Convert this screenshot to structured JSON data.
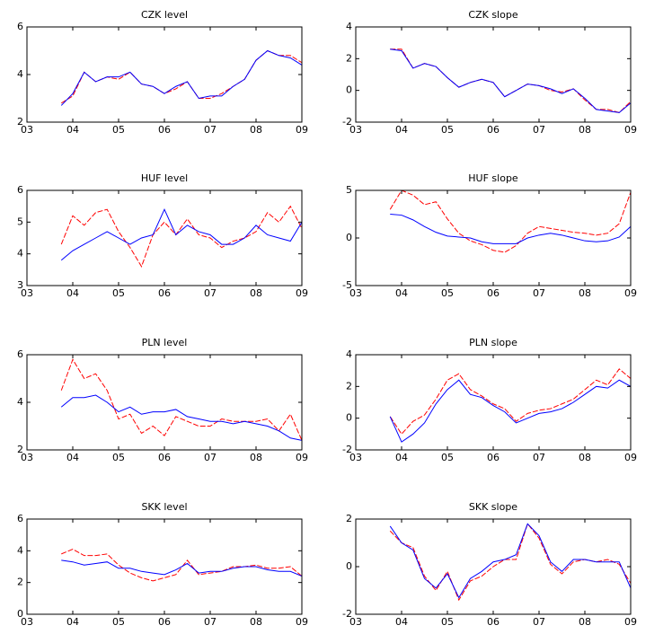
{
  "chart_data": [
    {
      "type": "line",
      "title": "CZK level",
      "x": [
        3.75,
        4.0,
        4.25,
        4.5,
        4.75,
        5.0,
        5.25,
        5.5,
        5.75,
        6.0,
        6.25,
        6.5,
        6.75,
        7.0,
        7.25,
        7.5,
        7.75,
        8.0,
        8.25,
        8.5,
        8.75,
        9.0
      ],
      "xlim": [
        3,
        9
      ],
      "xticks": [
        {
          "value": 3,
          "label": "03"
        },
        {
          "value": 4,
          "label": "04"
        },
        {
          "value": 5,
          "label": "05"
        },
        {
          "value": 6,
          "label": "06"
        },
        {
          "value": 7,
          "label": "07"
        },
        {
          "value": 8,
          "label": "08"
        },
        {
          "value": 9,
          "label": "09"
        }
      ],
      "ylim": [
        2,
        6
      ],
      "yticks": [
        2,
        4,
        6
      ],
      "series": [
        {
          "color": "#ff0000",
          "values": [
            2.8,
            3.1,
            4.1,
            3.7,
            3.9,
            3.8,
            4.1,
            3.6,
            3.5,
            3.2,
            3.4,
            3.7,
            3.0,
            3.0,
            3.2,
            3.5,
            3.8,
            4.6,
            5.0,
            4.8,
            4.8,
            4.5
          ]
        },
        {
          "color": "#0000ff",
          "values": [
            2.7,
            3.2,
            4.1,
            3.7,
            3.9,
            3.9,
            4.1,
            3.6,
            3.5,
            3.2,
            3.5,
            3.7,
            3.0,
            3.1,
            3.1,
            3.5,
            3.8,
            4.6,
            5.0,
            4.8,
            4.7,
            4.4
          ]
        }
      ]
    },
    {
      "type": "line",
      "title": "CZK slope",
      "x": [
        3.75,
        4.0,
        4.25,
        4.5,
        4.75,
        5.0,
        5.25,
        5.5,
        5.75,
        6.0,
        6.25,
        6.5,
        6.75,
        7.0,
        7.25,
        7.5,
        7.75,
        8.0,
        8.25,
        8.5,
        8.75,
        9.0
      ],
      "xlim": [
        3,
        9
      ],
      "xticks": [
        {
          "value": 3,
          "label": "03"
        },
        {
          "value": 4,
          "label": "04"
        },
        {
          "value": 5,
          "label": "05"
        },
        {
          "value": 6,
          "label": "06"
        },
        {
          "value": 7,
          "label": "07"
        },
        {
          "value": 8,
          "label": "08"
        },
        {
          "value": 9,
          "label": "09"
        }
      ],
      "ylim": [
        -2,
        4
      ],
      "yticks": [
        -2,
        0,
        2,
        4
      ],
      "series": [
        {
          "color": "#ff0000",
          "values": [
            2.6,
            2.6,
            1.4,
            1.7,
            1.5,
            0.8,
            0.2,
            0.5,
            0.7,
            0.5,
            -0.4,
            0.0,
            0.4,
            0.3,
            0.0,
            -0.1,
            0.1,
            -0.6,
            -1.2,
            -1.2,
            -1.4,
            -0.7
          ]
        },
        {
          "color": "#0000ff",
          "values": [
            2.6,
            2.5,
            1.4,
            1.7,
            1.5,
            0.8,
            0.2,
            0.5,
            0.7,
            0.5,
            -0.4,
            0.0,
            0.4,
            0.3,
            0.1,
            -0.2,
            0.1,
            -0.5,
            -1.2,
            -1.3,
            -1.4,
            -0.8
          ]
        }
      ]
    },
    {
      "type": "line",
      "title": "HUF level",
      "x": [
        3.75,
        4.0,
        4.25,
        4.5,
        4.75,
        5.0,
        5.25,
        5.5,
        5.75,
        6.0,
        6.25,
        6.5,
        6.75,
        7.0,
        7.25,
        7.5,
        7.75,
        8.0,
        8.25,
        8.5,
        8.75,
        9.0
      ],
      "xlim": [
        3,
        9
      ],
      "xticks": [
        {
          "value": 3,
          "label": "03"
        },
        {
          "value": 4,
          "label": "04"
        },
        {
          "value": 5,
          "label": "05"
        },
        {
          "value": 6,
          "label": "06"
        },
        {
          "value": 7,
          "label": "07"
        },
        {
          "value": 8,
          "label": "08"
        },
        {
          "value": 9,
          "label": "09"
        }
      ],
      "ylim": [
        3,
        6
      ],
      "yticks": [
        3,
        4,
        5,
        6
      ],
      "series": [
        {
          "color": "#ff0000",
          "values": [
            4.3,
            5.2,
            4.9,
            5.3,
            5.4,
            4.7,
            4.2,
            3.6,
            4.6,
            5.0,
            4.6,
            5.1,
            4.6,
            4.5,
            4.2,
            4.4,
            4.5,
            4.7,
            5.3,
            5.0,
            5.5,
            4.8
          ]
        },
        {
          "color": "#0000ff",
          "values": [
            3.8,
            4.1,
            4.3,
            4.5,
            4.7,
            4.5,
            4.3,
            4.5,
            4.6,
            5.4,
            4.6,
            4.9,
            4.7,
            4.6,
            4.3,
            4.3,
            4.5,
            4.9,
            4.6,
            4.5,
            4.4,
            5.0
          ]
        }
      ]
    },
    {
      "type": "line",
      "title": "HUF slope",
      "x": [
        3.75,
        4.0,
        4.25,
        4.5,
        4.75,
        5.0,
        5.25,
        5.5,
        5.75,
        6.0,
        6.25,
        6.5,
        6.75,
        7.0,
        7.25,
        7.5,
        7.75,
        8.0,
        8.25,
        8.5,
        8.75,
        9.0
      ],
      "xlim": [
        3,
        9
      ],
      "xticks": [
        {
          "value": 3,
          "label": "03"
        },
        {
          "value": 4,
          "label": "04"
        },
        {
          "value": 5,
          "label": "05"
        },
        {
          "value": 6,
          "label": "06"
        },
        {
          "value": 7,
          "label": "07"
        },
        {
          "value": 8,
          "label": "08"
        },
        {
          "value": 9,
          "label": "09"
        }
      ],
      "ylim": [
        -5,
        5
      ],
      "yticks": [
        -5,
        0,
        5
      ],
      "series": [
        {
          "color": "#ff0000",
          "values": [
            3.0,
            5.0,
            4.5,
            3.5,
            3.8,
            2.0,
            0.5,
            -0.3,
            -0.7,
            -1.3,
            -1.5,
            -0.8,
            0.5,
            1.2,
            1.0,
            0.8,
            0.6,
            0.5,
            0.3,
            0.5,
            1.5,
            4.8
          ]
        },
        {
          "color": "#0000ff",
          "values": [
            2.5,
            2.4,
            1.9,
            1.2,
            0.6,
            0.2,
            0.1,
            0.0,
            -0.4,
            -0.6,
            -0.6,
            -0.6,
            0.0,
            0.3,
            0.5,
            0.3,
            0.0,
            -0.3,
            -0.4,
            -0.3,
            0.1,
            1.2
          ]
        }
      ]
    },
    {
      "type": "line",
      "title": "PLN level",
      "x": [
        3.75,
        4.0,
        4.25,
        4.5,
        4.75,
        5.0,
        5.25,
        5.5,
        5.75,
        6.0,
        6.25,
        6.5,
        6.75,
        7.0,
        7.25,
        7.5,
        7.75,
        8.0,
        8.25,
        8.5,
        8.75,
        9.0
      ],
      "xlim": [
        3,
        9
      ],
      "xticks": [
        {
          "value": 3,
          "label": "03"
        },
        {
          "value": 4,
          "label": "04"
        },
        {
          "value": 5,
          "label": "05"
        },
        {
          "value": 6,
          "label": "06"
        },
        {
          "value": 7,
          "label": "07"
        },
        {
          "value": 8,
          "label": "08"
        },
        {
          "value": 9,
          "label": "09"
        }
      ],
      "ylim": [
        2,
        6
      ],
      "yticks": [
        2,
        4,
        6
      ],
      "series": [
        {
          "color": "#ff0000",
          "values": [
            4.5,
            5.8,
            5.0,
            5.2,
            4.5,
            3.3,
            3.5,
            2.7,
            3.0,
            2.6,
            3.4,
            3.2,
            3.0,
            3.0,
            3.3,
            3.2,
            3.2,
            3.2,
            3.3,
            2.8,
            3.5,
            2.4
          ]
        },
        {
          "color": "#0000ff",
          "values": [
            3.8,
            4.2,
            4.2,
            4.3,
            4.0,
            3.6,
            3.8,
            3.5,
            3.6,
            3.6,
            3.7,
            3.4,
            3.3,
            3.2,
            3.2,
            3.1,
            3.2,
            3.1,
            3.0,
            2.8,
            2.5,
            2.4
          ]
        }
      ]
    },
    {
      "type": "line",
      "title": "PLN slope",
      "x": [
        3.75,
        4.0,
        4.25,
        4.5,
        4.75,
        5.0,
        5.25,
        5.5,
        5.75,
        6.0,
        6.25,
        6.5,
        6.75,
        7.0,
        7.25,
        7.5,
        7.75,
        8.0,
        8.25,
        8.5,
        8.75,
        9.0
      ],
      "xlim": [
        3,
        9
      ],
      "xticks": [
        {
          "value": 3,
          "label": "03"
        },
        {
          "value": 4,
          "label": "04"
        },
        {
          "value": 5,
          "label": "05"
        },
        {
          "value": 6,
          "label": "06"
        },
        {
          "value": 7,
          "label": "07"
        },
        {
          "value": 8,
          "label": "08"
        },
        {
          "value": 9,
          "label": "09"
        }
      ],
      "ylim": [
        -2,
        4
      ],
      "yticks": [
        -2,
        0,
        2,
        4
      ],
      "series": [
        {
          "color": "#ff0000",
          "values": [
            0.1,
            -1.0,
            -0.2,
            0.2,
            1.2,
            2.4,
            2.8,
            1.8,
            1.4,
            0.9,
            0.6,
            -0.2,
            0.3,
            0.5,
            0.6,
            0.9,
            1.2,
            1.8,
            2.4,
            2.1,
            3.1,
            2.5
          ]
        },
        {
          "color": "#0000ff",
          "values": [
            0.1,
            -1.5,
            -1.0,
            -0.3,
            0.9,
            1.8,
            2.4,
            1.5,
            1.3,
            0.8,
            0.4,
            -0.3,
            0.0,
            0.3,
            0.4,
            0.6,
            1.0,
            1.5,
            2.0,
            1.9,
            2.4,
            2.0
          ]
        }
      ]
    },
    {
      "type": "line",
      "title": "SKK level",
      "x": [
        3.75,
        4.0,
        4.25,
        4.5,
        4.75,
        5.0,
        5.25,
        5.5,
        5.75,
        6.0,
        6.25,
        6.5,
        6.75,
        7.0,
        7.25,
        7.5,
        7.75,
        8.0,
        8.25,
        8.5,
        8.75,
        9.0
      ],
      "xlim": [
        3,
        9
      ],
      "xticks": [
        {
          "value": 3,
          "label": "03"
        },
        {
          "value": 4,
          "label": "04"
        },
        {
          "value": 5,
          "label": "05"
        },
        {
          "value": 6,
          "label": "06"
        },
        {
          "value": 7,
          "label": "07"
        },
        {
          "value": 8,
          "label": "08"
        },
        {
          "value": 9,
          "label": "09"
        }
      ],
      "ylim": [
        0,
        6
      ],
      "yticks": [
        0,
        2,
        4,
        6
      ],
      "series": [
        {
          "color": "#ff0000",
          "values": [
            3.8,
            4.1,
            3.7,
            3.7,
            3.8,
            3.1,
            2.6,
            2.3,
            2.1,
            2.3,
            2.5,
            3.4,
            2.5,
            2.6,
            2.7,
            3.0,
            3.0,
            3.1,
            2.9,
            2.9,
            3.0,
            2.4
          ]
        },
        {
          "color": "#0000ff",
          "values": [
            3.4,
            3.3,
            3.1,
            3.2,
            3.3,
            2.9,
            2.9,
            2.7,
            2.6,
            2.5,
            2.8,
            3.2,
            2.6,
            2.7,
            2.7,
            2.9,
            3.0,
            3.0,
            2.8,
            2.7,
            2.7,
            2.4
          ]
        }
      ]
    },
    {
      "type": "line",
      "title": "SKK slope",
      "x": [
        3.75,
        4.0,
        4.25,
        4.5,
        4.75,
        5.0,
        5.25,
        5.5,
        5.75,
        6.0,
        6.25,
        6.5,
        6.75,
        7.0,
        7.25,
        7.5,
        7.75,
        8.0,
        8.25,
        8.5,
        8.75,
        9.0
      ],
      "xlim": [
        3,
        9
      ],
      "xticks": [
        {
          "value": 3,
          "label": "03"
        },
        {
          "value": 4,
          "label": "04"
        },
        {
          "value": 5,
          "label": "05"
        },
        {
          "value": 6,
          "label": "06"
        },
        {
          "value": 7,
          "label": "07"
        },
        {
          "value": 8,
          "label": "08"
        },
        {
          "value": 9,
          "label": "09"
        }
      ],
      "ylim": [
        -2,
        2
      ],
      "yticks": [
        -2,
        0,
        2
      ],
      "series": [
        {
          "color": "#ff0000",
          "values": [
            1.5,
            1.0,
            0.8,
            -0.4,
            -1.0,
            -0.2,
            -1.4,
            -0.6,
            -0.4,
            0.0,
            0.3,
            0.3,
            1.8,
            1.2,
            0.1,
            -0.3,
            0.2,
            0.3,
            0.2,
            0.3,
            0.1,
            -0.7
          ]
        },
        {
          "color": "#0000ff",
          "values": [
            1.7,
            1.0,
            0.7,
            -0.5,
            -0.9,
            -0.3,
            -1.3,
            -0.5,
            -0.2,
            0.2,
            0.3,
            0.5,
            1.8,
            1.3,
            0.2,
            -0.2,
            0.3,
            0.3,
            0.2,
            0.2,
            0.2,
            -0.9
          ]
        }
      ]
    }
  ]
}
